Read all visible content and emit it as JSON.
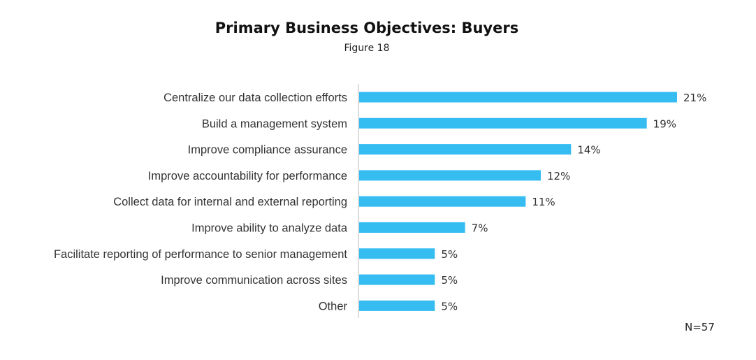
{
  "chart_data": {
    "type": "bar",
    "orientation": "horizontal",
    "title": "Primary Business Objectives: Buyers",
    "subtitle": "Figure 18",
    "note": "N=57",
    "categories": [
      "Centralize our data collection efforts",
      "Build a management system",
      "Improve compliance assurance",
      "Improve accountability for performance",
      "Collect data for internal and external reporting",
      "Improve ability to analyze data",
      "Facilitate reporting of performance to senior management",
      "Improve communication across sites",
      "Other"
    ],
    "values": [
      21,
      19,
      14,
      12,
      11,
      7,
      5,
      5,
      5
    ],
    "value_suffix": "%",
    "xlim": [
      0,
      21
    ],
    "bar_color": "#35BDF2",
    "axis_color": "#BBBBBB",
    "grid": false,
    "legend": "none"
  }
}
